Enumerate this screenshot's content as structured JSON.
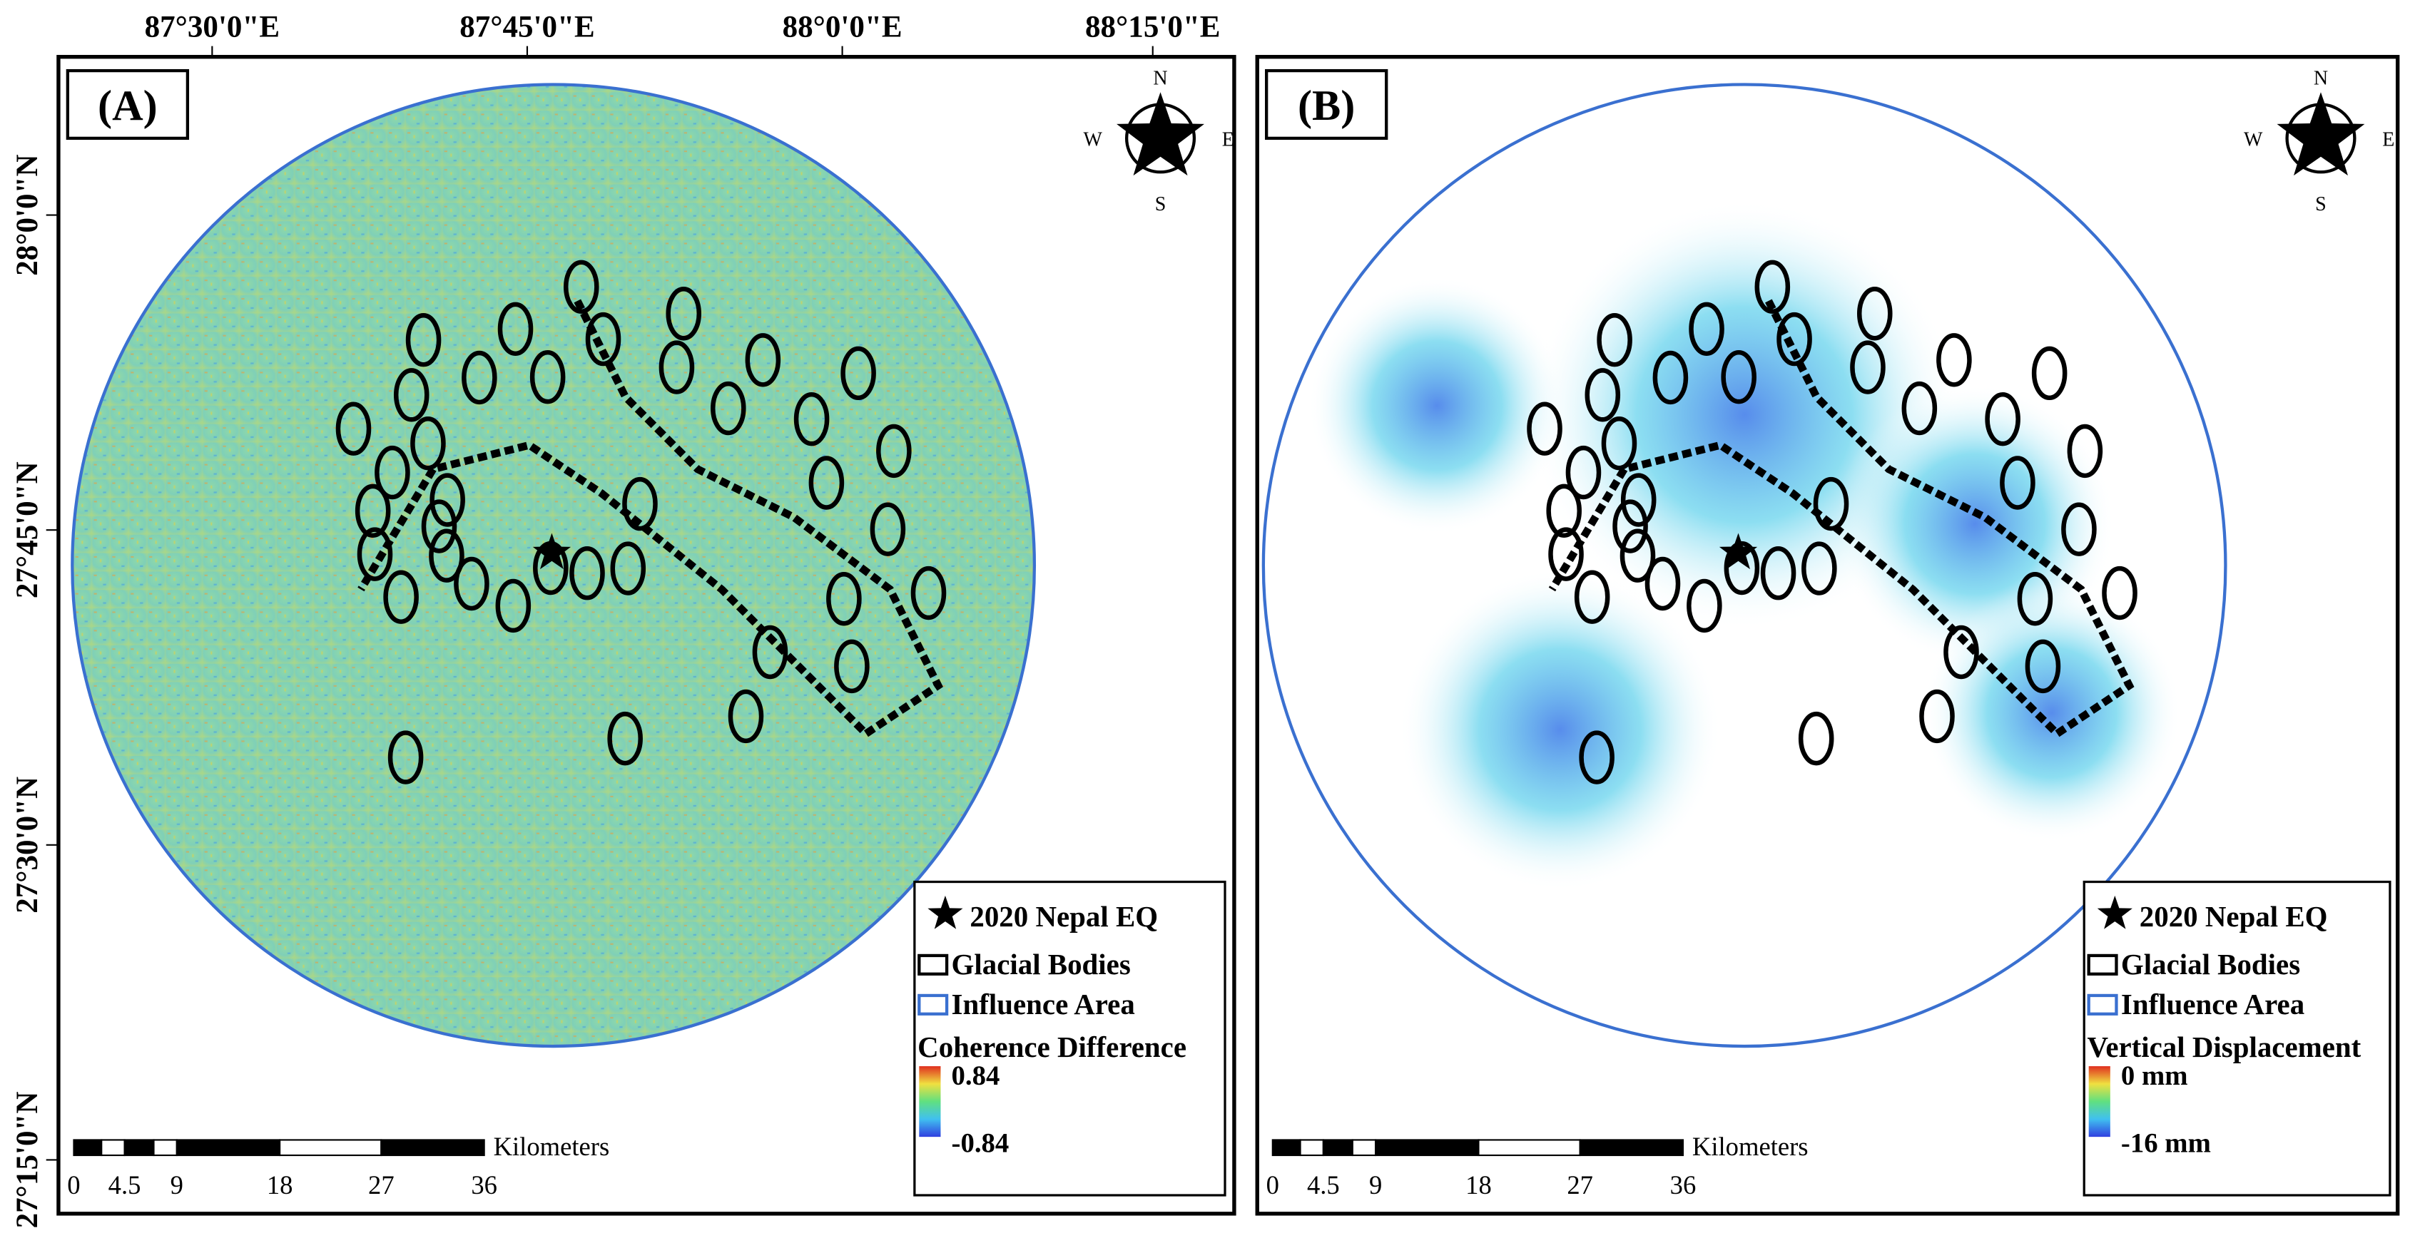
{
  "axes": {
    "lon_labels": [
      "87°30'0\"E",
      "87°45'0\"E",
      "88°0'0\"E",
      "88°15'0\"E"
    ],
    "lat_labels": [
      "28°0'0\"N",
      "27°45'0\"N",
      "27°30'0\"N",
      "27°15'0\"N"
    ]
  },
  "panels": [
    {
      "label": "(A)",
      "compass": {
        "n": "N",
        "e": "E",
        "s": "S",
        "w": "W"
      },
      "legend": {
        "items": [
          "2020 Nepal EQ",
          "Glacial Bodies",
          "Influence Area"
        ],
        "colorbar_title": "Coherence Difference",
        "colorbar_max": "0.84",
        "colorbar_min": "-0.84"
      },
      "scale_bar": {
        "unit": "Kilometers",
        "ticks": [
          "0",
          "4.5",
          "9",
          "18",
          "27",
          "36"
        ]
      }
    },
    {
      "label": "(B)",
      "compass": {
        "n": "N",
        "e": "E",
        "s": "S",
        "w": "W"
      },
      "legend": {
        "items": [
          "2020 Nepal EQ",
          "Glacial Bodies",
          "Influence Area"
        ],
        "colorbar_title": "Vertical Displacement",
        "colorbar_max": "0 mm",
        "colorbar_min": "-16 mm"
      },
      "scale_bar": {
        "unit": "Kilometers",
        "ticks": [
          "0",
          "4.5",
          "9",
          "18",
          "27",
          "36"
        ]
      }
    }
  ]
}
